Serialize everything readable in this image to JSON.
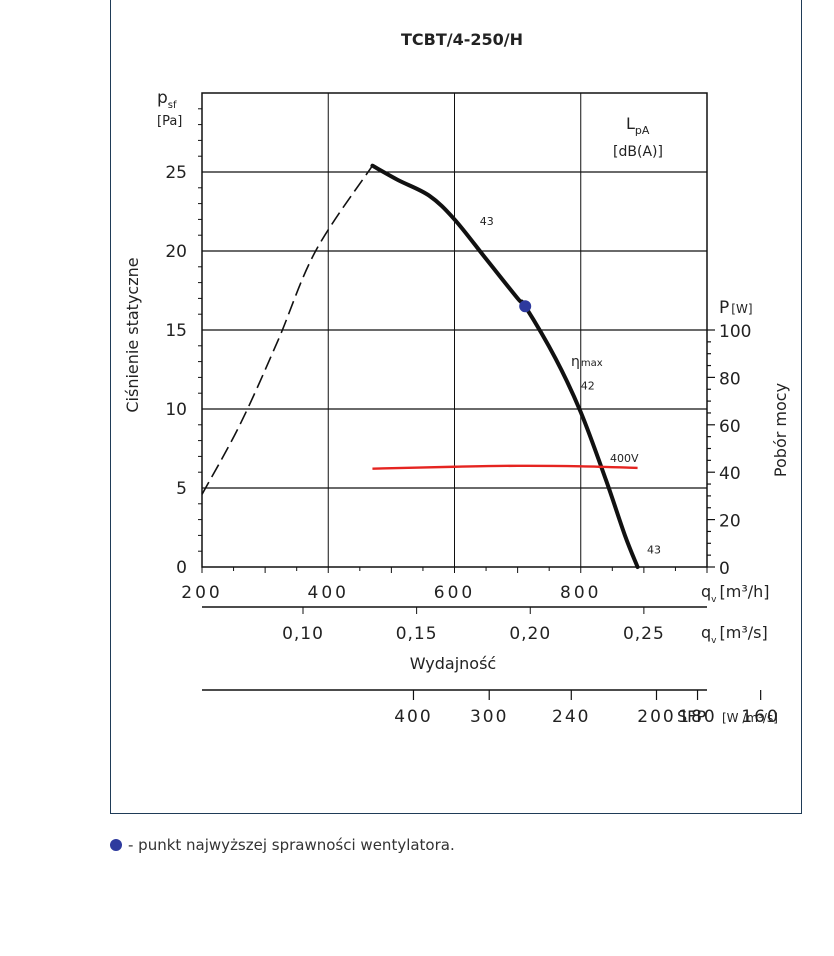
{
  "chart_data": {
    "type": "line",
    "title": "TCBT/4-250/H",
    "ylabel": "Ciśnienie statyczne",
    "y_symbol": "p",
    "y_symbol_sub": "sf",
    "y_unit": "[Pa]",
    "y_ticks": [
      0,
      5,
      10,
      15,
      20,
      25
    ],
    "ylim": [
      0,
      30
    ],
    "xlabel": "Wydajność",
    "x_ticks_m3h": [
      "200",
      "400",
      "600",
      "800"
    ],
    "xlim_m3h": [
      200,
      1000
    ],
    "x_unit_m3h": "[m³/h]",
    "x_ticks_m3s": [
      "0,10",
      "0,15",
      "0,20",
      "0,25"
    ],
    "x_ticks_m3s_values": [
      0.1,
      0.15,
      0.2,
      0.25
    ],
    "x_unit_m3s": "[m³/s]",
    "x_symbol": "q",
    "x_symbol_sub": "v",
    "sfp_ticks": [
      "400",
      "300",
      "240",
      "200",
      "180",
      "160"
    ],
    "sfp_ticks_m3h": [
      535,
      655,
      785,
      920,
      985,
      1085
    ],
    "sfp_label": "SFP",
    "sfp_unit": "[W /m³/s]",
    "power_symbol": "P",
    "power_unit": "[W]",
    "power_label": "Pobór mocy",
    "power_ticks": [
      0,
      20,
      40,
      60,
      80,
      100
    ],
    "power_lim": [
      0,
      100
    ],
    "lpa_label": "L",
    "lpa_sub": "pA",
    "lpa_unit": "[dB(A)]",
    "eta_label": "η",
    "eta_sub": "max",
    "voltage_label": "400V",
    "series": [
      {
        "role": "unstable",
        "style": "dashed",
        "points": [
          [
            200,
            4.6
          ],
          [
            260,
            9.0
          ],
          [
            320,
            14.3
          ],
          [
            380,
            20.0
          ],
          [
            470,
            25.4
          ]
        ]
      },
      {
        "role": "pressure",
        "style": "solid",
        "points": [
          [
            470,
            25.4
          ],
          [
            510,
            24.5
          ],
          [
            560,
            23.5
          ],
          [
            600,
            22.0
          ],
          [
            650,
            19.5
          ],
          [
            700,
            17.0
          ],
          [
            712,
            16.5
          ],
          [
            760,
            13.2
          ],
          [
            800,
            9.8
          ],
          [
            840,
            5.5
          ],
          [
            870,
            2.0
          ],
          [
            890,
            0.0
          ]
        ]
      },
      {
        "role": "power",
        "style": "solid",
        "color": "#e52420",
        "points": [
          [
            470,
            41.5
          ],
          [
            600,
            42.3
          ],
          [
            700,
            42.7
          ],
          [
            800,
            42.5
          ],
          [
            890,
            41.8
          ]
        ]
      }
    ],
    "optimum_point": [
      712,
      16.5
    ],
    "noise_labels": [
      {
        "text": "43",
        "x": 640,
        "y": 21.9
      },
      {
        "text": "42",
        "x": 800,
        "y": 11.5
      },
      {
        "text": "43",
        "x": 905,
        "y": 1.1
      }
    ],
    "colors": {
      "pressure": "#111111",
      "power": "#e52420",
      "noise": "#2aa84a",
      "optimum": "#2e3a9e",
      "eta": "#2e3a9e"
    }
  },
  "legend": {
    "text": "- punkt najwyższej sprawności wentylatora.",
    "dot_color": "#2e3a9e"
  }
}
